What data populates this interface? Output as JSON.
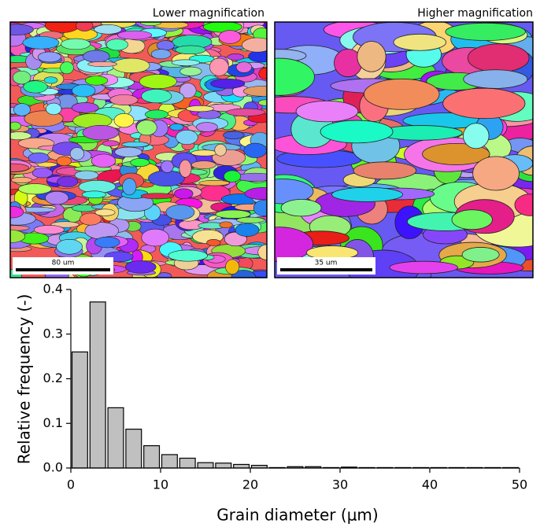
{
  "images": [
    {
      "caption": "Lower magnification",
      "scale_bar": "80 um"
    },
    {
      "caption": "Higher magnification",
      "scale_bar": "35 um"
    }
  ],
  "chart_data": {
    "type": "histogram",
    "xlabel": "Grain diameter (μm)",
    "ylabel": "Relative frequency (-)",
    "bins": [
      0,
      2,
      4,
      6,
      8,
      10,
      12,
      14,
      16,
      18,
      20,
      22,
      24,
      26,
      28,
      30,
      32,
      34,
      36,
      38,
      40,
      42,
      44,
      46,
      48,
      50
    ],
    "values": [
      0.26,
      0.372,
      0.135,
      0.087,
      0.05,
      0.03,
      0.022,
      0.012,
      0.011,
      0.008,
      0.006,
      0.001,
      0.003,
      0.003,
      0.001,
      0.002,
      0.001,
      0.001,
      0.001,
      0.001,
      0.001,
      0.001,
      0.001,
      0.001,
      0.001
    ],
    "color": "#c0c0c0",
    "xlim": [
      0,
      50
    ],
    "xticks": [
      0,
      10,
      20,
      30,
      40,
      50
    ],
    "ylim": [
      0,
      0.4
    ],
    "yticks": [
      {
        "value": 0,
        "label": "0.0"
      },
      0.1,
      0.2,
      0.3,
      0.4
    ]
  }
}
